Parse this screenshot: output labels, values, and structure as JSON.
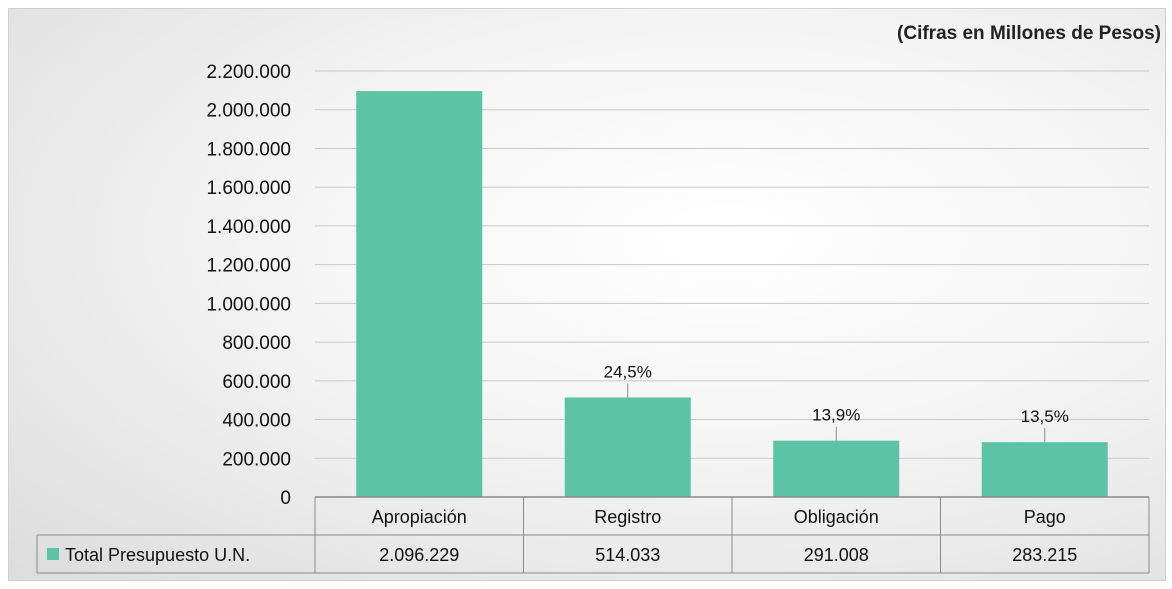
{
  "subtitle": "(Cifras en Millones de Pesos)",
  "chart_data": {
    "type": "bar",
    "categories": [
      "Apropiación",
      "Registro",
      "Obligación",
      "Pago"
    ],
    "series": [
      {
        "name": "Total Presupuesto U.N.",
        "values": [
          2096229,
          514033,
          291008,
          283215
        ],
        "value_labels": [
          "2.096.229",
          "514.033",
          "291.008",
          "283.215"
        ]
      }
    ],
    "data_labels": [
      "",
      "24,5%",
      "13,9%",
      "13,5%"
    ],
    "y_ticks": [
      "0",
      "200.000",
      "400.000",
      "600.000",
      "800.000",
      "1.000.000",
      "1.200.000",
      "1.400.000",
      "1.600.000",
      "1.800.000",
      "2.000.000",
      "2.200.000"
    ],
    "ylim": [
      0,
      2200000
    ],
    "grid": true,
    "legend_placement": "data-table",
    "colors": {
      "bar": "#5bc4a4",
      "grid": "#c8c8c8",
      "axis": "#8a8a8a"
    }
  }
}
